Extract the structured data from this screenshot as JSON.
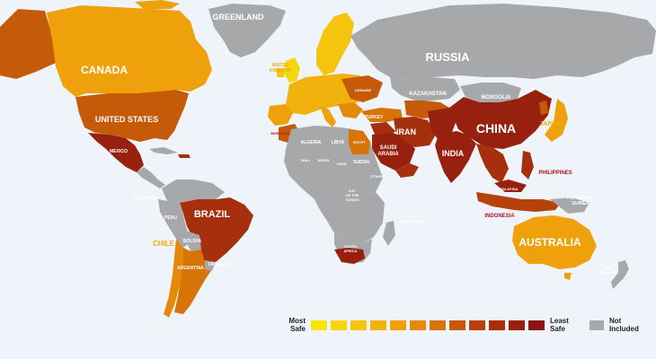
{
  "colors": {
    "ocean": "#eef4f9",
    "not_included": "#a7a8aa",
    "scale": [
      "#f6e60b",
      "#f5d60d",
      "#f4c40f",
      "#f2b20d",
      "#efa10b",
      "#e48a08",
      "#d67408",
      "#c55a09",
      "#b5420b",
      "#a6300d",
      "#97200e",
      "#8a1810"
    ],
    "label_white": "#ffffff"
  },
  "countries": {
    "greenland": "GREENLAND",
    "canada": "CANADA",
    "united_states": "UNITED STATES",
    "mexico": "MEXICO",
    "brazil": "BRAZIL",
    "chile": "CHILE",
    "argentina": "ARGENTINA",
    "uruguay": "URUGUAY",
    "peru": "PERU",
    "bolivia": "BOLIVIA",
    "ecuador": "ECUADOR",
    "russia": "RUSSIA",
    "china": "CHINA",
    "india": "INDIA",
    "iran": "IRAN",
    "japan": "JAPAN",
    "australia": "AUSTRALIA",
    "kazakhstan": "KAZAKHSTAN",
    "mongolia": "MONGOLIA",
    "turkey": "TURKEY",
    "saudi_arabia_1": "SAUDI",
    "saudi_arabia_2": "ARABIA",
    "south_africa_1": "SOUTH",
    "south_africa_2": "AFRICA",
    "philippines": "PHILIPPINES",
    "indonesia": "INDONESIA",
    "malaysia": "MALAYSIA",
    "papua_1": "PAPUA NEW",
    "papua_2": "GUINEA",
    "new_zealand_1": "NEW",
    "new_zealand_2": "ZEALAND",
    "algeria": "ALGERIA",
    "libya": "LIBYA",
    "egypt": "EGYPT",
    "morocco": "MOROCCO",
    "mali": "MALI",
    "niger": "NIGER",
    "chad": "CHAD",
    "sudan": "SUDAN",
    "ethiopia": "ETHIOPIA",
    "congo_1": "D.R.",
    "congo_2": "OF THE",
    "congo_3": "CONGO",
    "madagascar": "MADAGASCAR",
    "uk_1": "UNITED",
    "uk_2": "KINGDOM",
    "ukraine": "UKRAINE"
  },
  "legend": {
    "most_safe_1": "Most",
    "most_safe_2": "Safe",
    "least_safe_1": "Least",
    "least_safe_2": "Safe",
    "not_included_1": "Not",
    "not_included_2": "Included",
    "swatch_levels": [
      0,
      1,
      2,
      3,
      4,
      5,
      6,
      7,
      8,
      9,
      10,
      11
    ]
  }
}
